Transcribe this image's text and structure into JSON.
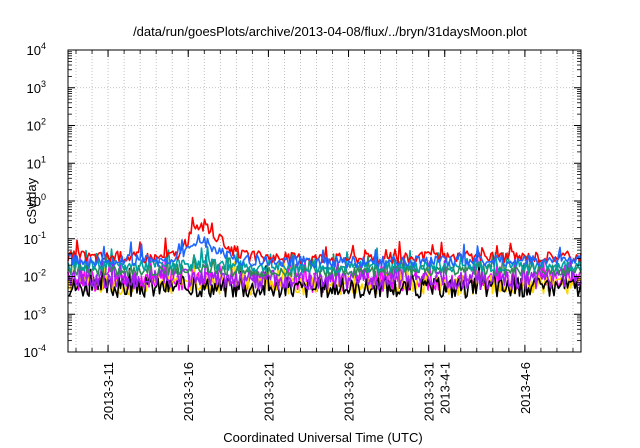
{
  "chart_data": {
    "type": "line",
    "title": "/data/run/goesPlots/archive/2013-04-08/flux/../bryn/31daysMoon.plot",
    "xlabel": "Coordinated Universal Time (UTC)",
    "ylabel": "cSv/day",
    "y_scale": "log",
    "ylim": [
      0.0001,
      10000
    ],
    "y_ticks": [
      {
        "value": 0.0001,
        "base": "10",
        "exp": "-4"
      },
      {
        "value": 0.001,
        "base": "10",
        "exp": "-3"
      },
      {
        "value": 0.01,
        "base": "10",
        "exp": "-2"
      },
      {
        "value": 0.1,
        "base": "10",
        "exp": "-1"
      },
      {
        "value": 1,
        "base": "10",
        "exp": "0"
      },
      {
        "value": 10,
        "base": "10",
        "exp": "1"
      },
      {
        "value": 100,
        "base": "10",
        "exp": "2"
      },
      {
        "value": 1000,
        "base": "10",
        "exp": "3"
      },
      {
        "value": 10000,
        "base": "10",
        "exp": "4"
      }
    ],
    "xlim": [
      "2013-03-08T12:00",
      "2013-04-09T12:00"
    ],
    "x_ticks": [
      {
        "date": "2013-03-11",
        "label": "2013-3-11"
      },
      {
        "date": "2013-03-16",
        "label": "2013-3-16"
      },
      {
        "date": "2013-03-21",
        "label": "2013-3-21"
      },
      {
        "date": "2013-03-26",
        "label": "2013-3-26"
      },
      {
        "date": "2013-03-31",
        "label": "2013-3-31"
      },
      {
        "date": "2013-04-01",
        "label": "2013-4-1"
      },
      {
        "date": "2013-04-06",
        "label": "2013-4-6"
      }
    ],
    "grid": true,
    "series": [
      {
        "color": "#ff0000",
        "x": [
          "2013-03-08T12:00",
          "2013-03-10",
          "2013-03-12",
          "2013-03-14",
          "2013-03-15T12:00",
          "2013-03-16T06:00",
          "2013-03-16T18:00",
          "2013-03-17T12:00",
          "2013-03-18T12:00",
          "2013-03-19T12:00",
          "2013-03-22",
          "2013-03-25",
          "2013-03-28",
          "2013-03-31",
          "2013-04-03",
          "2013-04-06",
          "2013-04-09T12:00"
        ],
        "y": [
          0.035,
          0.033,
          0.034,
          0.032,
          0.04,
          0.15,
          0.25,
          0.14,
          0.06,
          0.035,
          0.032,
          0.031,
          0.03,
          0.032,
          0.034,
          0.033,
          0.035
        ]
      },
      {
        "color": "#1f66ff",
        "x": [
          "2013-03-08T12:00",
          "2013-03-10",
          "2013-03-12",
          "2013-03-14",
          "2013-03-15T12:00",
          "2013-03-16T06:00",
          "2013-03-16T18:00",
          "2013-03-17T12:00",
          "2013-03-18T12:00",
          "2013-03-19T12:00",
          "2013-03-22",
          "2013-03-25",
          "2013-03-28",
          "2013-03-31",
          "2013-04-03",
          "2013-04-06",
          "2013-04-09T12:00"
        ],
        "y": [
          0.028,
          0.026,
          0.027,
          0.026,
          0.032,
          0.07,
          0.1,
          0.06,
          0.035,
          0.027,
          0.025,
          0.024,
          0.024,
          0.025,
          0.026,
          0.026,
          0.028
        ]
      },
      {
        "color": "#00a0a0",
        "x": [
          "2013-03-08T12:00",
          "2013-03-12",
          "2013-03-16",
          "2013-03-20",
          "2013-03-24",
          "2013-03-28",
          "2013-04-01",
          "2013-04-05",
          "2013-04-09T12:00"
        ],
        "y": [
          0.02,
          0.019,
          0.022,
          0.018,
          0.017,
          0.018,
          0.018,
          0.019,
          0.02
        ]
      },
      {
        "color": "#2e8b57",
        "x": [
          "2013-03-08T12:00",
          "2013-03-12",
          "2013-03-16",
          "2013-03-20",
          "2013-03-24",
          "2013-03-28",
          "2013-04-01",
          "2013-04-05",
          "2013-04-09T12:00"
        ],
        "y": [
          0.015,
          0.014,
          0.016,
          0.014,
          0.013,
          0.014,
          0.014,
          0.014,
          0.015
        ]
      },
      {
        "color": "#a020f0",
        "x": [
          "2013-03-08T12:00",
          "2013-03-12",
          "2013-03-16",
          "2013-03-20",
          "2013-03-24",
          "2013-03-28",
          "2013-04-01",
          "2013-04-05",
          "2013-04-09T12:00"
        ],
        "y": [
          0.009,
          0.0085,
          0.009,
          0.0085,
          0.008,
          0.0085,
          0.0085,
          0.0085,
          0.009
        ]
      },
      {
        "color": "#ffd700",
        "x": [
          "2013-03-08T12:00",
          "2013-03-12",
          "2013-03-16",
          "2013-03-20",
          "2013-03-24",
          "2013-03-28",
          "2013-04-01",
          "2013-04-05",
          "2013-04-09T12:00"
        ],
        "y": [
          0.0065,
          0.006,
          0.0065,
          0.006,
          0.006,
          0.006,
          0.006,
          0.006,
          0.0065
        ]
      },
      {
        "color": "#000000",
        "x": [
          "2013-03-08T12:00",
          "2013-03-12",
          "2013-03-16",
          "2013-03-20",
          "2013-03-24",
          "2013-03-28",
          "2013-04-01",
          "2013-04-05",
          "2013-04-09T12:00"
        ],
        "y": [
          0.0055,
          0.005,
          0.0055,
          0.005,
          0.005,
          0.005,
          0.005,
          0.005,
          0.0055
        ]
      },
      {
        "color": "#ff00ff",
        "x": [
          "2013-03-08T12:00",
          "2013-03-12",
          "2013-03-16",
          "2013-03-20",
          "2013-03-24",
          "2013-03-28",
          "2013-04-01",
          "2013-04-05",
          "2013-04-09T12:00"
        ],
        "y": [
          0.008,
          0.0075,
          0.008,
          0.0075,
          0.007,
          0.0075,
          0.0075,
          0.0075,
          0.008
        ]
      }
    ]
  }
}
